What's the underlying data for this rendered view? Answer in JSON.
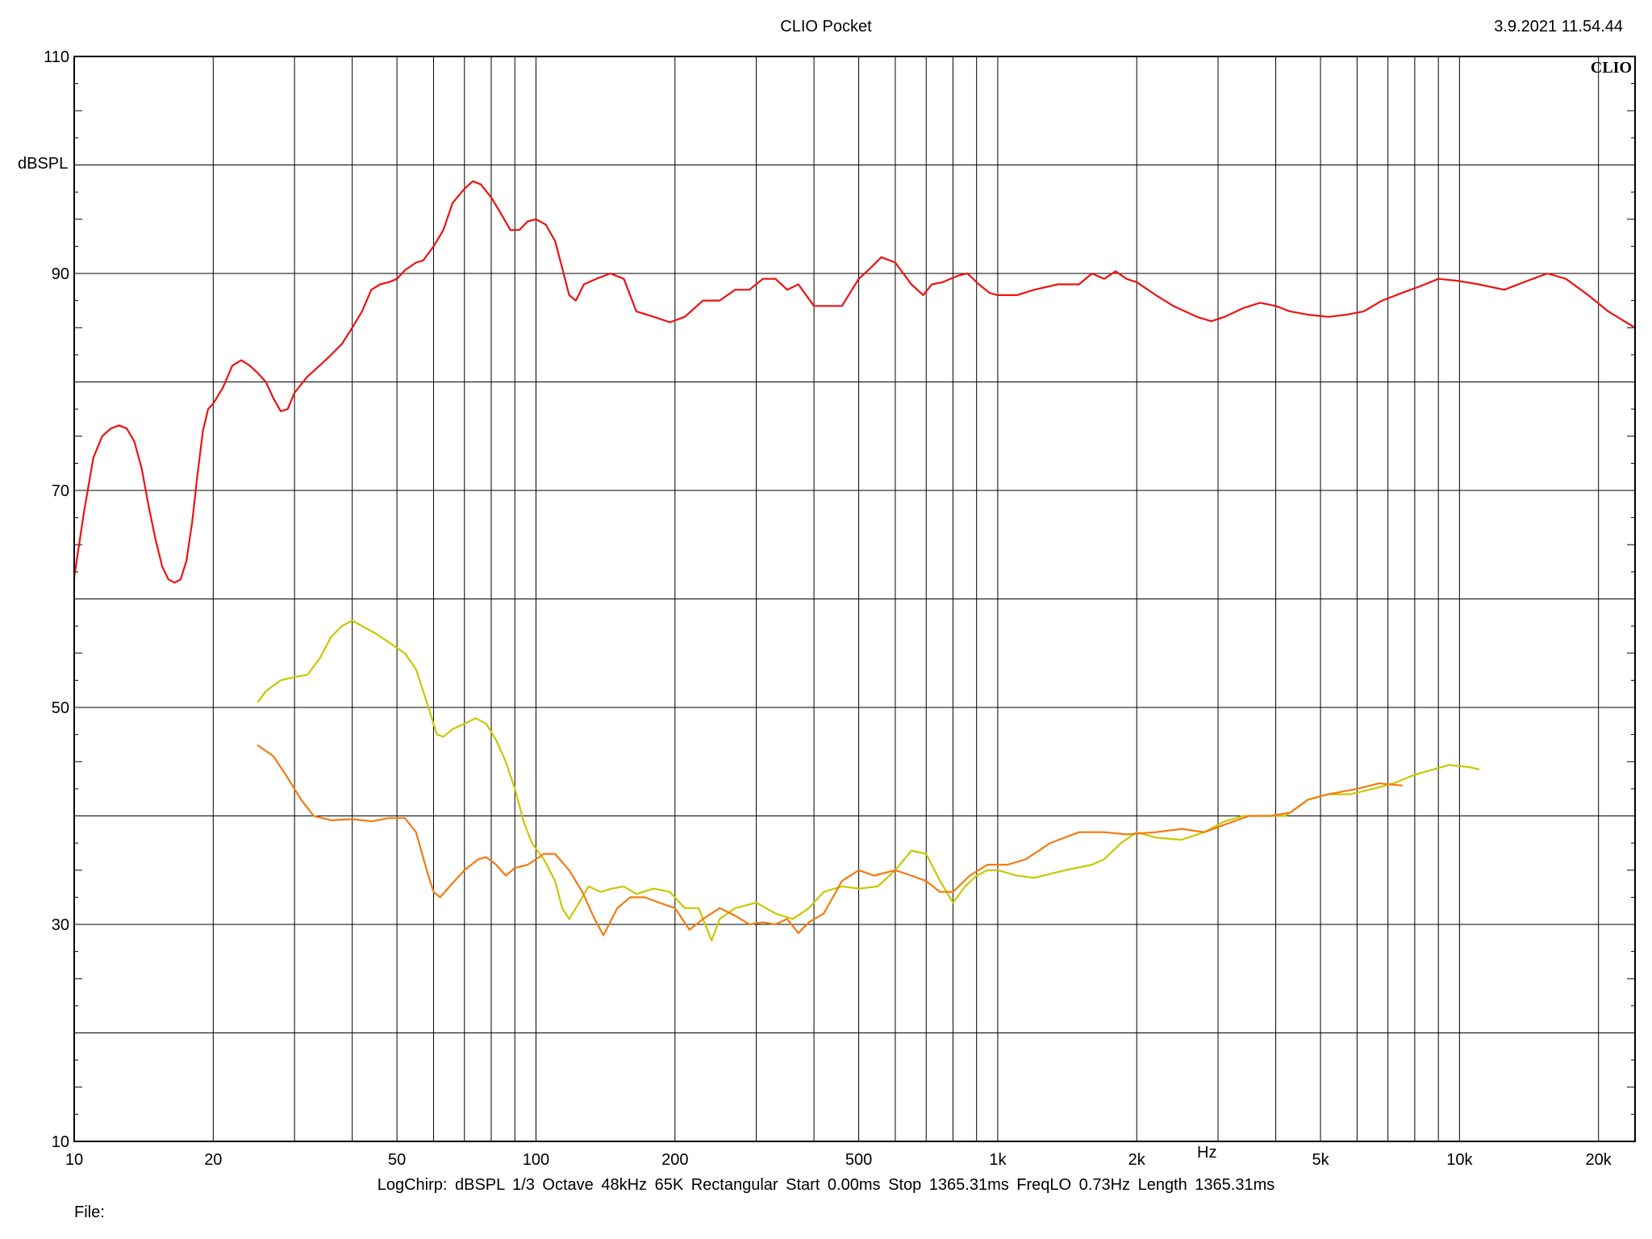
{
  "header": {
    "title": "CLIO Pocket",
    "timestamp": "3.9.2021 11.54.44",
    "brand": "CLIO"
  },
  "footer": {
    "params": "LogChirp:  dBSPL   1/3 Octave   48kHz   65K   Rectangular   Start 0.00ms   Stop 1365.31ms   FreqLO 0.73Hz   Length 1365.31ms",
    "file_label": "File:"
  },
  "chart_data": {
    "type": "line",
    "xscale": "log",
    "xlim": [
      10,
      24000
    ],
    "ylim": [
      10,
      110
    ],
    "ylabel": "dBSPL",
    "xlabel": "Hz",
    "grid": true,
    "x_ticks": [
      {
        "v": 10,
        "label": "10"
      },
      {
        "v": 20,
        "label": "20"
      },
      {
        "v": 50,
        "label": "50"
      },
      {
        "v": 100,
        "label": "100"
      },
      {
        "v": 200,
        "label": "200"
      },
      {
        "v": 500,
        "label": "500"
      },
      {
        "v": 1000,
        "label": "1k"
      },
      {
        "v": 2000,
        "label": "2k"
      },
      {
        "v": 5000,
        "label": "5k"
      },
      {
        "v": 10000,
        "label": "10k"
      },
      {
        "v": 20000,
        "label": "20k"
      }
    ],
    "y_ticks": [
      {
        "v": 10,
        "label": "10"
      },
      {
        "v": 30,
        "label": "30"
      },
      {
        "v": 50,
        "label": "50"
      },
      {
        "v": 70,
        "label": "70"
      },
      {
        "v": 90,
        "label": "90"
      },
      {
        "v": 110,
        "label": "110"
      }
    ],
    "series": [
      {
        "color": "#ee1111",
        "points": [
          [
            10,
            62
          ],
          [
            10.5,
            68
          ],
          [
            11,
            73
          ],
          [
            11.5,
            75
          ],
          [
            12,
            75.7
          ],
          [
            12.5,
            76
          ],
          [
            13,
            75.7
          ],
          [
            13.5,
            74.5
          ],
          [
            14,
            72
          ],
          [
            14.5,
            68.5
          ],
          [
            15,
            65.5
          ],
          [
            15.5,
            63
          ],
          [
            16,
            61.8
          ],
          [
            16.5,
            61.5
          ],
          [
            17,
            61.8
          ],
          [
            17.5,
            63.5
          ],
          [
            18,
            67
          ],
          [
            18.5,
            71.5
          ],
          [
            19,
            75.5
          ],
          [
            19.5,
            77.5
          ],
          [
            20,
            78
          ],
          [
            21,
            79.5
          ],
          [
            22,
            81.5
          ],
          [
            23,
            82
          ],
          [
            24,
            81.5
          ],
          [
            25,
            80.8
          ],
          [
            26,
            80
          ],
          [
            27,
            78.5
          ],
          [
            28,
            77.3
          ],
          [
            29,
            77.5
          ],
          [
            30,
            79
          ],
          [
            32,
            80.5
          ],
          [
            34,
            81.5
          ],
          [
            36,
            82.5
          ],
          [
            38,
            83.5
          ],
          [
            40,
            85
          ],
          [
            42,
            86.5
          ],
          [
            44,
            88.5
          ],
          [
            46,
            89
          ],
          [
            48,
            89.2
          ],
          [
            50,
            89.5
          ],
          [
            52,
            90.3
          ],
          [
            55,
            91
          ],
          [
            57,
            91.2
          ],
          [
            60,
            92.5
          ],
          [
            63,
            94
          ],
          [
            66,
            96.5
          ],
          [
            70,
            97.8
          ],
          [
            73,
            98.5
          ],
          [
            76,
            98.2
          ],
          [
            80,
            97
          ],
          [
            84,
            95.5
          ],
          [
            88,
            94
          ],
          [
            92,
            94
          ],
          [
            96,
            94.8
          ],
          [
            100,
            95
          ],
          [
            105,
            94.5
          ],
          [
            110,
            93
          ],
          [
            114,
            90.5
          ],
          [
            118,
            88
          ],
          [
            122,
            87.5
          ],
          [
            127,
            89
          ],
          [
            135,
            89.5
          ],
          [
            145,
            90
          ],
          [
            155,
            89.5
          ],
          [
            165,
            86.5
          ],
          [
            180,
            86
          ],
          [
            195,
            85.5
          ],
          [
            210,
            86
          ],
          [
            230,
            87.5
          ],
          [
            250,
            87.5
          ],
          [
            270,
            88.5
          ],
          [
            290,
            88.5
          ],
          [
            310,
            89.5
          ],
          [
            330,
            89.5
          ],
          [
            350,
            88.5
          ],
          [
            370,
            89
          ],
          [
            400,
            87
          ],
          [
            430,
            87
          ],
          [
            460,
            87
          ],
          [
            500,
            89.5
          ],
          [
            530,
            90.5
          ],
          [
            560,
            91.5
          ],
          [
            600,
            91
          ],
          [
            650,
            89
          ],
          [
            690,
            88
          ],
          [
            720,
            89
          ],
          [
            760,
            89.2
          ],
          [
            820,
            89.8
          ],
          [
            860,
            90
          ],
          [
            910,
            89
          ],
          [
            960,
            88.2
          ],
          [
            1000,
            88
          ],
          [
            1100,
            88
          ],
          [
            1200,
            88.5
          ],
          [
            1350,
            89
          ],
          [
            1500,
            89
          ],
          [
            1600,
            90
          ],
          [
            1700,
            89.5
          ],
          [
            1800,
            90.2
          ],
          [
            1900,
            89.5
          ],
          [
            2000,
            89.2
          ],
          [
            2200,
            88
          ],
          [
            2400,
            87
          ],
          [
            2700,
            86
          ],
          [
            2900,
            85.6
          ],
          [
            3100,
            86
          ],
          [
            3400,
            86.8
          ],
          [
            3700,
            87.3
          ],
          [
            4000,
            87
          ],
          [
            4300,
            86.5
          ],
          [
            4700,
            86.2
          ],
          [
            5200,
            86
          ],
          [
            5700,
            86.2
          ],
          [
            6200,
            86.5
          ],
          [
            6800,
            87.5
          ],
          [
            7500,
            88.2
          ],
          [
            8200,
            88.8
          ],
          [
            9000,
            89.5
          ],
          [
            10000,
            89.3
          ],
          [
            11000,
            89
          ],
          [
            12500,
            88.5
          ],
          [
            14000,
            89.3
          ],
          [
            15500,
            90
          ],
          [
            17000,
            89.5
          ],
          [
            19000,
            88
          ],
          [
            21000,
            86.5
          ],
          [
            24000,
            85
          ]
        ]
      },
      {
        "color": "#c8c800",
        "points": [
          [
            25,
            50.5
          ],
          [
            26,
            51.5
          ],
          [
            28,
            52.5
          ],
          [
            30,
            52.8
          ],
          [
            32,
            53
          ],
          [
            34,
            54.5
          ],
          [
            36,
            56.5
          ],
          [
            38,
            57.5
          ],
          [
            40,
            58
          ],
          [
            42,
            57.5
          ],
          [
            45,
            56.8
          ],
          [
            48,
            56
          ],
          [
            52,
            55
          ],
          [
            55,
            53.5
          ],
          [
            58,
            50.5
          ],
          [
            61,
            47.5
          ],
          [
            63,
            47.3
          ],
          [
            66,
            48
          ],
          [
            70,
            48.5
          ],
          [
            74,
            49
          ],
          [
            78,
            48.5
          ],
          [
            82,
            47
          ],
          [
            86,
            45
          ],
          [
            90,
            42.5
          ],
          [
            94,
            39.5
          ],
          [
            98,
            37.5
          ],
          [
            104,
            36
          ],
          [
            110,
            34
          ],
          [
            114,
            31.5
          ],
          [
            118,
            30.5
          ],
          [
            124,
            32
          ],
          [
            130,
            33.5
          ],
          [
            138,
            33
          ],
          [
            146,
            33.3
          ],
          [
            155,
            33.5
          ],
          [
            165,
            32.8
          ],
          [
            180,
            33.3
          ],
          [
            195,
            33
          ],
          [
            210,
            31.5
          ],
          [
            225,
            31.5
          ],
          [
            235,
            29.5
          ],
          [
            240,
            28.5
          ],
          [
            250,
            30.5
          ],
          [
            270,
            31.5
          ],
          [
            300,
            32
          ],
          [
            330,
            31
          ],
          [
            360,
            30.5
          ],
          [
            390,
            31.5
          ],
          [
            420,
            33
          ],
          [
            460,
            33.5
          ],
          [
            500,
            33.3
          ],
          [
            550,
            33.5
          ],
          [
            600,
            35
          ],
          [
            650,
            36.8
          ],
          [
            700,
            36.5
          ],
          [
            750,
            34
          ],
          [
            800,
            32
          ],
          [
            850,
            33.5
          ],
          [
            900,
            34.5
          ],
          [
            950,
            35
          ],
          [
            1000,
            35
          ],
          [
            1100,
            34.5
          ],
          [
            1200,
            34.3
          ],
          [
            1400,
            35
          ],
          [
            1600,
            35.5
          ],
          [
            1700,
            36
          ],
          [
            1850,
            37.5
          ],
          [
            2000,
            38.5
          ],
          [
            2200,
            38
          ],
          [
            2500,
            37.8
          ],
          [
            2800,
            38.5
          ],
          [
            3100,
            39.5
          ],
          [
            3400,
            40
          ],
          [
            3800,
            40
          ],
          [
            4200,
            40
          ],
          [
            4700,
            41.5
          ],
          [
            5200,
            42
          ],
          [
            5800,
            42
          ],
          [
            6500,
            42.5
          ],
          [
            7200,
            43
          ],
          [
            8000,
            43.8
          ],
          [
            8800,
            44.3
          ],
          [
            9500,
            44.7
          ],
          [
            10500,
            44.5
          ],
          [
            11000,
            44.3
          ]
        ]
      },
      {
        "color": "#f47a10",
        "points": [
          [
            25,
            46.5
          ],
          [
            27,
            45.5
          ],
          [
            29,
            43.5
          ],
          [
            31,
            41.5
          ],
          [
            33,
            40
          ],
          [
            36,
            39.6
          ],
          [
            40,
            39.7
          ],
          [
            44,
            39.5
          ],
          [
            48,
            39.8
          ],
          [
            52,
            39.8
          ],
          [
            55,
            38.5
          ],
          [
            58,
            35
          ],
          [
            60,
            33
          ],
          [
            62,
            32.5
          ],
          [
            65,
            33.5
          ],
          [
            70,
            35
          ],
          [
            75,
            36
          ],
          [
            78,
            36.2
          ],
          [
            82,
            35.5
          ],
          [
            86,
            34.5
          ],
          [
            90,
            35.2
          ],
          [
            96,
            35.5
          ],
          [
            104,
            36.5
          ],
          [
            110,
            36.5
          ],
          [
            118,
            35
          ],
          [
            126,
            33
          ],
          [
            134,
            30.5
          ],
          [
            140,
            29
          ],
          [
            150,
            31.5
          ],
          [
            160,
            32.5
          ],
          [
            172,
            32.5
          ],
          [
            185,
            32
          ],
          [
            200,
            31.5
          ],
          [
            215,
            29.5
          ],
          [
            230,
            30.5
          ],
          [
            250,
            31.5
          ],
          [
            270,
            30.8
          ],
          [
            290,
            30
          ],
          [
            310,
            30.2
          ],
          [
            330,
            30
          ],
          [
            350,
            30.5
          ],
          [
            370,
            29.2
          ],
          [
            390,
            30.2
          ],
          [
            420,
            31
          ],
          [
            460,
            34
          ],
          [
            500,
            35
          ],
          [
            540,
            34.5
          ],
          [
            600,
            35
          ],
          [
            650,
            34.5
          ],
          [
            700,
            34
          ],
          [
            750,
            33
          ],
          [
            800,
            33
          ],
          [
            870,
            34.5
          ],
          [
            950,
            35.5
          ],
          [
            1050,
            35.5
          ],
          [
            1150,
            36
          ],
          [
            1300,
            37.5
          ],
          [
            1500,
            38.5
          ],
          [
            1700,
            38.5
          ],
          [
            1900,
            38.3
          ],
          [
            2200,
            38.5
          ],
          [
            2500,
            38.8
          ],
          [
            2800,
            38.5
          ],
          [
            3100,
            39.2
          ],
          [
            3500,
            40
          ],
          [
            3900,
            40
          ],
          [
            4300,
            40.3
          ],
          [
            4700,
            41.5
          ],
          [
            5200,
            42
          ],
          [
            6000,
            42.5
          ],
          [
            6700,
            43
          ],
          [
            7500,
            42.8
          ]
        ]
      }
    ]
  }
}
